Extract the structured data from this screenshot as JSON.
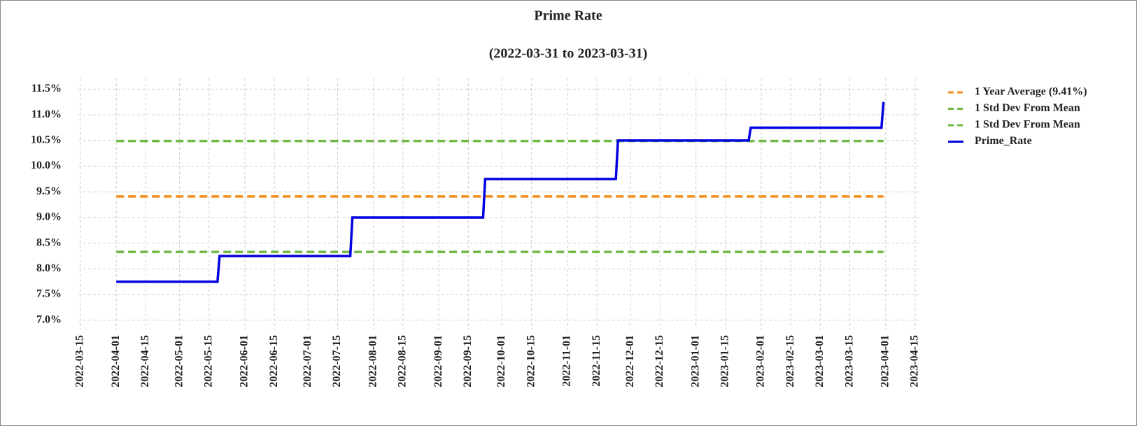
{
  "chart_data": {
    "type": "line",
    "title": "Prime Rate",
    "subtitle": "(2022-03-31 to 2023-03-31)",
    "x": [
      "2022-04-01",
      "2022-05-19",
      "2022-05-20",
      "2022-07-21",
      "2022-07-22",
      "2022-09-22",
      "2022-09-23",
      "2022-11-24",
      "2022-11-25",
      "2023-01-26",
      "2023-01-27",
      "2023-03-30",
      "2023-03-31"
    ],
    "series": [
      {
        "name": "1 Year Average (9.41%)",
        "color": "#f28e1c",
        "style": "dashed",
        "values": [
          9.41,
          9.41,
          9.41,
          9.41,
          9.41,
          9.41,
          9.41,
          9.41,
          9.41,
          9.41,
          9.41,
          9.41,
          9.41
        ]
      },
      {
        "name": "1 Std Dev From Mean",
        "color": "#70b843",
        "style": "dashed",
        "values": [
          10.49,
          10.49,
          10.49,
          10.49,
          10.49,
          10.49,
          10.49,
          10.49,
          10.49,
          10.49,
          10.49,
          10.49,
          10.49
        ]
      },
      {
        "name": "1 Std Dev From Mean",
        "color": "#70b843",
        "style": "dashed",
        "values": [
          8.33,
          8.33,
          8.33,
          8.33,
          8.33,
          8.33,
          8.33,
          8.33,
          8.33,
          8.33,
          8.33,
          8.33,
          8.33
        ]
      },
      {
        "name": "Prime_Rate",
        "color": "#0000e0",
        "style": "solid",
        "values": [
          7.75,
          7.75,
          8.25,
          8.25,
          9.0,
          9.0,
          9.75,
          9.75,
          10.5,
          10.5,
          10.75,
          10.75,
          11.25
        ]
      }
    ],
    "xlim": [
      "2022-03-14",
      "2023-04-17"
    ],
    "xticks": [
      "2022-03-15",
      "2022-04-01",
      "2022-04-15",
      "2022-05-01",
      "2022-05-15",
      "2022-06-01",
      "2022-06-15",
      "2022-07-01",
      "2022-07-15",
      "2022-08-01",
      "2022-08-15",
      "2022-09-01",
      "2022-09-15",
      "2022-10-01",
      "2022-10-15",
      "2022-11-01",
      "2022-11-15",
      "2022-12-01",
      "2022-12-15",
      "2023-01-01",
      "2023-01-15",
      "2023-02-01",
      "2023-02-15",
      "2023-03-01",
      "2023-03-15",
      "2023-04-01",
      "2023-04-15"
    ],
    "ylim": [
      6.82,
      11.71
    ],
    "yticks": [
      {
        "value": 7.0,
        "label": "7.0%"
      },
      {
        "value": 7.5,
        "label": "7.5%"
      },
      {
        "value": 8.0,
        "label": "8.0%"
      },
      {
        "value": 8.5,
        "label": "8.5%"
      },
      {
        "value": 9.0,
        "label": "9.0%"
      },
      {
        "value": 9.5,
        "label": "9.5%"
      },
      {
        "value": 10.0,
        "label": "10.0%"
      },
      {
        "value": 10.5,
        "label": "10.5%"
      },
      {
        "value": 11.0,
        "label": "11.0%"
      },
      {
        "value": 11.5,
        "label": "11.5%"
      }
    ],
    "grid": true,
    "legend": "right"
  }
}
